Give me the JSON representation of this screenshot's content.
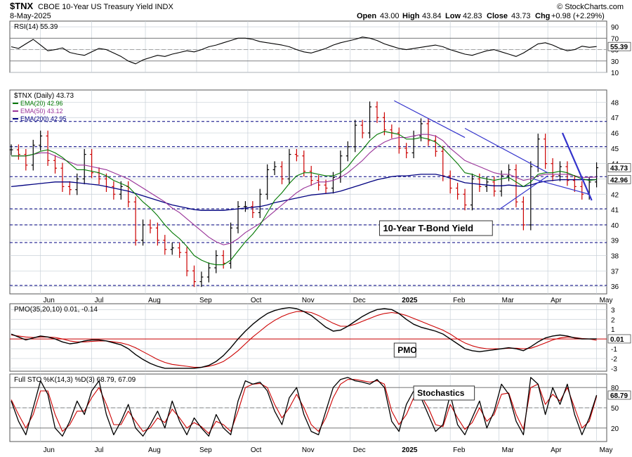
{
  "header": {
    "symbol": "$TNX",
    "name": "CBOE 10-Year US Treasury Yield INDX",
    "date": "8-May-2025",
    "open_label": "Open",
    "open": "43.00",
    "high_label": "High",
    "high": "43.84",
    "low_label": "Low",
    "low": "42.83",
    "close_label": "Close",
    "close": "43.73",
    "chg_label": "Chg",
    "chg": "+0.98 (+2.29%)",
    "copyright": "© StockCharts.com"
  },
  "colors": {
    "price_up": "#000000",
    "price_down": "#cc0000",
    "ema20": "#007700",
    "ema50": "#993399",
    "ema200": "#000080",
    "grid": "#c8d0d8",
    "panel_border": "#555555",
    "trendline": "#3333cc",
    "zero_line": "#cc0000",
    "signal": "#cc0000",
    "axis_box": "#ffffff"
  },
  "chart_data": [
    {
      "id": "rsi",
      "type": "line",
      "title": "RSI(14) 55.39",
      "ylim": [
        10,
        100
      ],
      "ticks": [
        90,
        70,
        50,
        30,
        10
      ],
      "reference_lines": [
        70,
        30
      ],
      "last_value_label": "55.39",
      "x": [
        0,
        3,
        6,
        9,
        12,
        15,
        18,
        21,
        24,
        27,
        30,
        33,
        36,
        39,
        42,
        45,
        48,
        51,
        54,
        57,
        60,
        63,
        66,
        69,
        72,
        75,
        78,
        81,
        84,
        87,
        90,
        93,
        96,
        99,
        102,
        105,
        108,
        111,
        114,
        117,
        120,
        123,
        126,
        129,
        132,
        135,
        138,
        141,
        144,
        147,
        150,
        153,
        156,
        159,
        162,
        165,
        168,
        171,
        174,
        177,
        180,
        183,
        186,
        189,
        192,
        195,
        198,
        201,
        204,
        207,
        210,
        213,
        216,
        219,
        222,
        225,
        228,
        231,
        234,
        237,
        240
      ],
      "values": [
        55,
        52,
        60,
        68,
        58,
        48,
        50,
        53,
        45,
        42,
        40,
        46,
        52,
        50,
        44,
        38,
        30,
        25,
        32,
        36,
        40,
        38,
        42,
        45,
        48,
        46,
        50,
        55,
        58,
        62,
        66,
        70,
        70,
        68,
        64,
        62,
        60,
        58,
        55,
        50,
        46,
        44,
        48,
        52,
        58,
        62,
        65,
        68,
        72,
        70,
        66,
        60,
        56,
        52,
        50,
        52,
        54,
        56,
        58,
        55,
        50,
        46,
        42,
        40,
        44,
        48,
        50,
        46,
        42,
        38,
        44,
        52,
        60,
        62,
        58,
        52,
        48,
        50,
        56,
        54,
        55.39
      ]
    },
    {
      "id": "price",
      "type": "line",
      "title": "$TNX (Daily) 43.73",
      "legend": [
        {
          "name": "EMA(20) 42.96",
          "color": "#007700"
        },
        {
          "name": "EMA(50) 43.12",
          "color": "#993399"
        },
        {
          "name": "EMA(200) 42.95",
          "color": "#000080"
        }
      ],
      "ylim": [
        35.5,
        48.8
      ],
      "ticks": [
        48,
        47,
        46,
        45,
        44,
        43,
        42,
        41,
        40,
        39,
        38,
        37,
        36
      ],
      "horizontal_levels": [
        46.75,
        45.1,
        43.15,
        41.05,
        40.0,
        38.85,
        36.05
      ],
      "x_labels": [
        {
          "label": "Jun",
          "x": 12
        },
        {
          "label": "Jul",
          "x": 33
        },
        {
          "label": "Aug",
          "x": 55
        },
        {
          "label": "Sep",
          "x": 76
        },
        {
          "label": "Oct",
          "x": 97
        },
        {
          "label": "Nov",
          "x": 118
        },
        {
          "label": "Dec",
          "x": 139
        },
        {
          "label": "2025",
          "x": 159
        },
        {
          "label": "Feb",
          "x": 180
        },
        {
          "label": "Mar",
          "x": 200
        },
        {
          "label": "Apr",
          "x": 220
        },
        {
          "label": "May",
          "x": 240
        }
      ],
      "x": [
        0,
        3,
        6,
        9,
        12,
        15,
        18,
        21,
        24,
        27,
        30,
        33,
        36,
        39,
        42,
        45,
        48,
        51,
        54,
        57,
        60,
        63,
        66,
        69,
        72,
        75,
        78,
        81,
        84,
        87,
        90,
        93,
        96,
        99,
        102,
        105,
        108,
        111,
        114,
        117,
        120,
        123,
        126,
        129,
        132,
        135,
        138,
        141,
        144,
        147,
        150,
        153,
        156,
        159,
        162,
        165,
        168,
        171,
        174,
        177,
        180,
        183,
        186,
        189,
        192,
        195,
        198,
        201,
        204,
        207,
        210,
        213,
        216,
        219,
        222,
        225,
        228,
        231,
        234,
        237,
        240
      ],
      "close": [
        44.9,
        44.6,
        43.9,
        45.2,
        45.8,
        44.2,
        43.7,
        42.5,
        42.3,
        43.0,
        44.6,
        43.4,
        43.0,
        42.5,
        42.0,
        42.5,
        41.5,
        39.0,
        40.0,
        39.8,
        39.0,
        38.4,
        38.5,
        38.2,
        37.0,
        36.3,
        36.6,
        37.2,
        38.0,
        37.5,
        39.8,
        41.2,
        41.2,
        40.8,
        42.0,
        43.6,
        43.8,
        43.0,
        44.6,
        44.5,
        43.5,
        42.9,
        42.6,
        42.4,
        43.1,
        44.5,
        45.1,
        46.5,
        46.0,
        47.7,
        47.0,
        46.2,
        46.0,
        45.0,
        44.7,
        45.8,
        46.6,
        45.5,
        44.8,
        43.2,
        42.4,
        42.0,
        41.3,
        43.0,
        42.5,
        42.8,
        42.2,
        43.2,
        43.6,
        41.5,
        40.0,
        43.8,
        45.6,
        44.0,
        43.2,
        43.8,
        42.9,
        42.5,
        42.0,
        42.8,
        43.73
      ],
      "ema20": [
        44.5,
        44.5,
        44.5,
        44.6,
        44.8,
        44.9,
        44.7,
        44.4,
        44.0,
        43.6,
        43.6,
        43.5,
        43.4,
        43.2,
        42.9,
        42.7,
        42.5,
        42.0,
        41.5,
        41.1,
        40.6,
        40.0,
        39.5,
        39.1,
        38.6,
        38.0,
        37.7,
        37.5,
        37.4,
        37.4,
        37.7,
        38.3,
        38.9,
        39.4,
        40.0,
        40.8,
        41.6,
        42.1,
        42.7,
        43.2,
        43.4,
        43.4,
        43.3,
        43.2,
        43.2,
        43.4,
        43.8,
        44.4,
        44.9,
        45.5,
        45.9,
        46.1,
        46.0,
        45.9,
        45.6,
        45.6,
        45.7,
        45.6,
        45.4,
        45.0,
        44.5,
        44.0,
        43.4,
        43.3,
        43.1,
        43.0,
        42.9,
        43.0,
        43.1,
        42.8,
        42.5,
        42.8,
        43.3,
        43.4,
        43.4,
        43.5,
        43.4,
        43.2,
        43.0,
        42.9,
        42.96
      ],
      "ema50": [
        44.5,
        44.5,
        44.5,
        44.6,
        44.7,
        44.7,
        44.5,
        44.3,
        44.1,
        43.9,
        43.9,
        43.8,
        43.7,
        43.6,
        43.4,
        43.2,
        43.0,
        42.7,
        42.4,
        42.1,
        41.8,
        41.5,
        41.1,
        40.8,
        40.4,
        40.0,
        39.6,
        39.2,
        38.9,
        38.7,
        38.8,
        39.1,
        39.5,
        39.8,
        40.1,
        40.5,
        40.9,
        41.3,
        41.7,
        42.1,
        42.4,
        42.6,
        42.8,
        42.8,
        42.9,
        43.1,
        43.4,
        43.8,
        44.2,
        44.7,
        45.1,
        45.4,
        45.6,
        45.7,
        45.7,
        45.8,
        45.9,
        45.9,
        45.8,
        45.5,
        45.0,
        44.6,
        44.2,
        44.0,
        43.8,
        43.6,
        43.4,
        43.3,
        43.3,
        43.1,
        42.9,
        43.0,
        43.2,
        43.3,
        43.3,
        43.3,
        43.3,
        43.2,
        43.1,
        43.1,
        43.12
      ],
      "ema200": [
        42.5,
        42.55,
        42.6,
        42.65,
        42.7,
        42.75,
        42.8,
        42.8,
        42.8,
        42.75,
        42.7,
        42.65,
        42.6,
        42.5,
        42.4,
        42.3,
        42.2,
        42.05,
        41.9,
        41.75,
        41.6,
        41.45,
        41.3,
        41.2,
        41.1,
        41.0,
        40.95,
        40.95,
        40.95,
        40.95,
        41.0,
        41.05,
        41.1,
        41.15,
        41.2,
        41.3,
        41.45,
        41.55,
        41.65,
        41.75,
        41.85,
        41.95,
        42.0,
        42.05,
        42.1,
        42.2,
        42.35,
        42.5,
        42.65,
        42.8,
        42.95,
        43.05,
        43.15,
        43.2,
        43.2,
        43.25,
        43.3,
        43.3,
        43.3,
        43.2,
        43.05,
        42.9,
        42.75,
        42.7,
        42.65,
        42.6,
        42.55,
        42.55,
        42.6,
        42.55,
        42.5,
        42.6,
        42.75,
        42.85,
        42.9,
        42.95,
        42.95,
        42.95,
        42.95,
        42.95,
        42.95
      ],
      "trendlines": [
        {
          "x1": 157,
          "y1": 48.1,
          "x2": 186,
          "y2": 45.7
        },
        {
          "x1": 186,
          "y1": 46.3,
          "x2": 220,
          "y2": 43.4
        },
        {
          "x1": 200,
          "y1": 41.0,
          "x2": 220,
          "y2": 43.2
        },
        {
          "x1": 214,
          "y1": 43.0,
          "x2": 237,
          "y2": 42.0
        },
        {
          "x1": 226,
          "y1": 46.0,
          "x2": 238,
          "y2": 41.6
        }
      ],
      "annotation": "10-Year T-Bond Yield",
      "last_value_label": "43.73",
      "secondary_value_label": "42.96"
    },
    {
      "id": "pmo",
      "type": "line",
      "title": "PMO(35,20,10) 0.01, -0.14",
      "ylim": [
        -3.3,
        3.6
      ],
      "ticks": [
        3,
        2,
        1,
        0,
        -1,
        -2,
        -3
      ],
      "zero_line": 0,
      "annotation": "PMO",
      "last_value_label": "0.01",
      "x": [
        0,
        3,
        6,
        9,
        12,
        15,
        18,
        21,
        24,
        27,
        30,
        33,
        36,
        39,
        42,
        45,
        48,
        51,
        54,
        57,
        60,
        63,
        66,
        69,
        72,
        75,
        78,
        81,
        84,
        87,
        90,
        93,
        96,
        99,
        102,
        105,
        108,
        111,
        114,
        117,
        120,
        123,
        126,
        129,
        132,
        135,
        138,
        141,
        144,
        147,
        150,
        153,
        156,
        159,
        162,
        165,
        168,
        171,
        174,
        177,
        180,
        183,
        186,
        189,
        192,
        195,
        198,
        201,
        204,
        207,
        210,
        213,
        216,
        219,
        222,
        225,
        228,
        231,
        234,
        237,
        240
      ],
      "values": [
        0.5,
        0.2,
        -0.1,
        0.1,
        0.3,
        0.2,
        0.0,
        -0.3,
        -0.5,
        -0.4,
        -0.2,
        -0.1,
        -0.1,
        -0.2,
        -0.4,
        -0.6,
        -1.0,
        -1.6,
        -2.1,
        -2.5,
        -2.8,
        -3.0,
        -3.0,
        -3.0,
        -3.0,
        -3.0,
        -2.9,
        -2.7,
        -2.3,
        -1.7,
        -0.9,
        0.0,
        0.8,
        1.5,
        2.1,
        2.6,
        2.9,
        3.1,
        3.2,
        3.1,
        2.8,
        2.4,
        1.8,
        1.2,
        0.8,
        0.9,
        1.3,
        1.8,
        2.3,
        2.7,
        3.0,
        3.1,
        3.0,
        2.6,
        2.0,
        1.5,
        1.2,
        1.0,
        0.8,
        0.5,
        0.0,
        -0.5,
        -1.0,
        -1.2,
        -1.3,
        -1.2,
        -1.1,
        -1.0,
        -0.9,
        -1.0,
        -1.2,
        -0.8,
        -0.3,
        0.1,
        0.3,
        0.4,
        0.3,
        0.1,
        0.0,
        0.0,
        0.01
      ],
      "signal": [
        0.4,
        0.3,
        0.2,
        0.15,
        0.2,
        0.2,
        0.15,
        0.0,
        -0.2,
        -0.3,
        -0.3,
        -0.25,
        -0.2,
        -0.2,
        -0.3,
        -0.4,
        -0.6,
        -0.9,
        -1.3,
        -1.7,
        -2.1,
        -2.4,
        -2.6,
        -2.7,
        -2.8,
        -2.9,
        -2.9,
        -2.8,
        -2.6,
        -2.3,
        -1.8,
        -1.2,
        -0.5,
        0.2,
        0.8,
        1.4,
        1.9,
        2.3,
        2.6,
        2.8,
        2.8,
        2.7,
        2.4,
        2.0,
        1.6,
        1.3,
        1.3,
        1.5,
        1.8,
        2.1,
        2.4,
        2.6,
        2.7,
        2.6,
        2.4,
        2.1,
        1.8,
        1.5,
        1.2,
        0.9,
        0.5,
        0.0,
        -0.4,
        -0.7,
        -0.9,
        -1.0,
        -1.0,
        -1.0,
        -0.95,
        -0.95,
        -1.0,
        -0.95,
        -0.7,
        -0.4,
        -0.1,
        0.1,
        0.2,
        0.15,
        0.05,
        0.0,
        -0.14
      ]
    },
    {
      "id": "stochastics",
      "type": "line",
      "title": "Full STO %K(14,3) %D(3) 68.79, 67.09",
      "ylim": [
        0,
        100
      ],
      "ticks": [
        80,
        50,
        20
      ],
      "reference_lines": [
        80,
        50,
        20
      ],
      "annotation": "Stochastics",
      "last_value_label": "68.79",
      "x": [
        0,
        3,
        6,
        9,
        12,
        15,
        18,
        21,
        24,
        27,
        30,
        33,
        36,
        39,
        42,
        45,
        48,
        51,
        54,
        57,
        60,
        63,
        66,
        69,
        72,
        75,
        78,
        81,
        84,
        87,
        90,
        93,
        96,
        99,
        102,
        105,
        108,
        111,
        114,
        117,
        120,
        123,
        126,
        129,
        132,
        135,
        138,
        141,
        144,
        147,
        150,
        153,
        156,
        159,
        162,
        165,
        168,
        171,
        174,
        177,
        180,
        183,
        186,
        189,
        192,
        195,
        198,
        201,
        204,
        207,
        210,
        213,
        216,
        219,
        222,
        225,
        228,
        231,
        234,
        237,
        240
      ],
      "k": [
        60,
        30,
        10,
        50,
        90,
        70,
        20,
        8,
        30,
        60,
        40,
        75,
        90,
        40,
        10,
        30,
        55,
        20,
        8,
        25,
        45,
        20,
        60,
        30,
        10,
        35,
        20,
        8,
        40,
        20,
        10,
        60,
        90,
        85,
        88,
        75,
        45,
        25,
        65,
        80,
        40,
        15,
        10,
        45,
        80,
        92,
        95,
        90,
        88,
        85,
        92,
        80,
        30,
        15,
        55,
        75,
        65,
        40,
        15,
        25,
        70,
        25,
        10,
        35,
        60,
        20,
        45,
        85,
        70,
        30,
        10,
        95,
        85,
        40,
        80,
        55,
        85,
        40,
        10,
        35,
        68.79
      ],
      "d": [
        62,
        40,
        20,
        40,
        75,
        75,
        40,
        15,
        25,
        45,
        45,
        65,
        80,
        55,
        25,
        25,
        45,
        30,
        15,
        20,
        35,
        28,
        48,
        35,
        20,
        28,
        22,
        12,
        30,
        25,
        15,
        45,
        80,
        85,
        86,
        80,
        55,
        35,
        50,
        70,
        50,
        25,
        15,
        35,
        65,
        85,
        92,
        92,
        90,
        88,
        90,
        85,
        45,
        25,
        40,
        65,
        68,
        50,
        25,
        22,
        55,
        35,
        18,
        28,
        50,
        30,
        40,
        70,
        72,
        40,
        18,
        80,
        85,
        55,
        70,
        60,
        80,
        50,
        20,
        30,
        67.09
      ]
    }
  ]
}
